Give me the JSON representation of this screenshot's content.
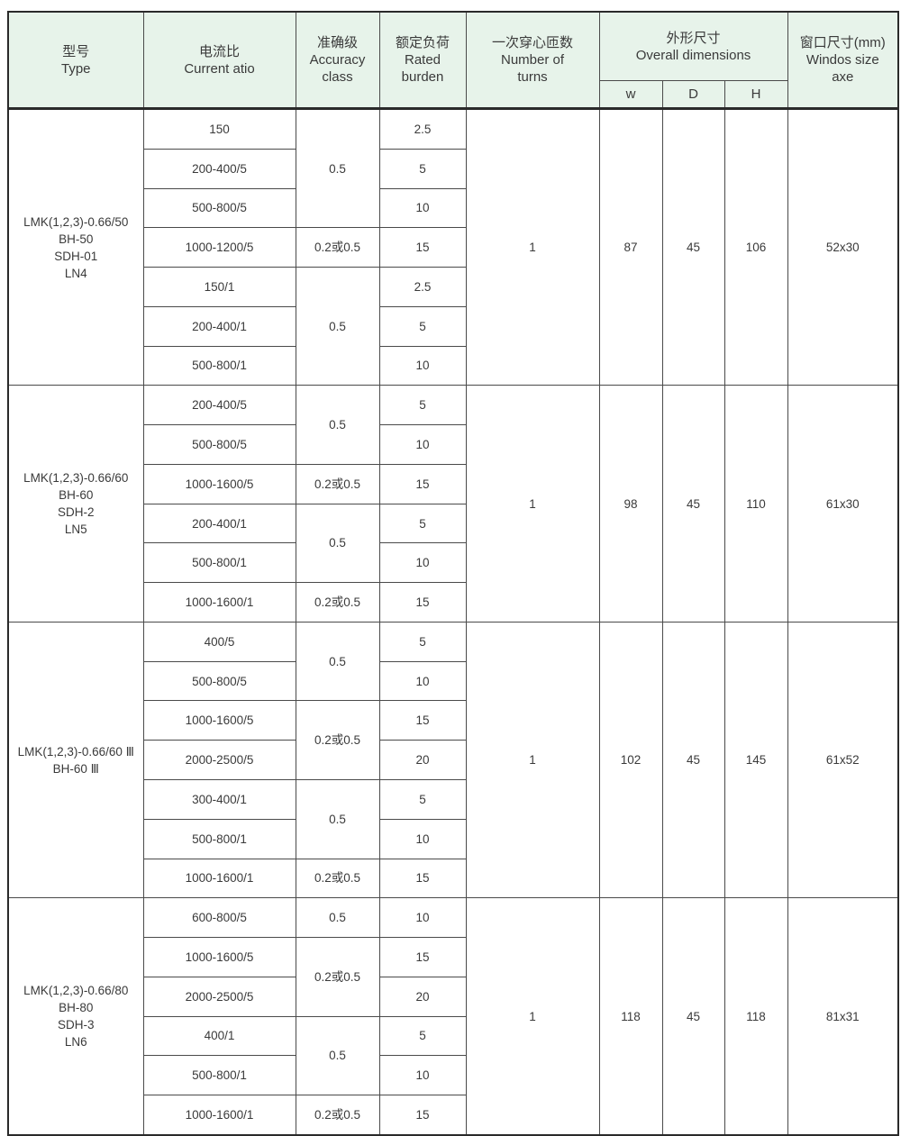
{
  "header": {
    "type": {
      "zh": "型号",
      "en": "Type"
    },
    "ratio": {
      "zh": "电流比",
      "en": "Current atio"
    },
    "accuracy": {
      "zh": "准确级",
      "en1": "Accuracy",
      "en2": "class"
    },
    "burden": {
      "zh": "额定负荷",
      "en1": "Rated",
      "en2": "burden"
    },
    "turns": {
      "zh": "一次穿心匝数",
      "en1": "Number of",
      "en2": "turns"
    },
    "dims": {
      "zh": "外形尺寸",
      "en": "Overall dimensions",
      "w": "w",
      "d": "D",
      "h": "H"
    },
    "window": {
      "zh": "窗口尺寸(mm)",
      "en1": "Windos size",
      "en2": "axe"
    }
  },
  "groups": [
    {
      "type": [
        "LMK(1,2,3)-0.66/50",
        "BH-50",
        "SDH-01",
        "LN4"
      ],
      "ratios": [
        "150",
        "200-400/5",
        "500-800/5",
        "1000-1200/5",
        "150/1",
        "200-400/1",
        "500-800/1"
      ],
      "accuracy": [
        {
          "value": "0.5",
          "span": 3
        },
        {
          "value": "0.2或0.5",
          "span": 1
        },
        {
          "value": "0.5",
          "span": 3
        }
      ],
      "burden": [
        "2.5",
        "5",
        "10",
        "15",
        "2.5",
        "5",
        "10"
      ],
      "turns": "1",
      "w": "87",
      "d": "45",
      "h": "106",
      "window": "52x30"
    },
    {
      "type": [
        "LMK(1,2,3)-0.66/60",
        "BH-60",
        "SDH-2",
        "LN5"
      ],
      "ratios": [
        "200-400/5",
        "500-800/5",
        "1000-1600/5",
        "200-400/1",
        "500-800/1",
        "1000-1600/1"
      ],
      "accuracy": [
        {
          "value": "0.5",
          "span": 2
        },
        {
          "value": "0.2或0.5",
          "span": 1
        },
        {
          "value": "0.5",
          "span": 2
        },
        {
          "value": "0.2或0.5",
          "span": 1
        }
      ],
      "burden": [
        "5",
        "10",
        "15",
        "5",
        "10",
        "15"
      ],
      "turns": "1",
      "w": "98",
      "d": "45",
      "h": "110",
      "window": "61x30"
    },
    {
      "type": [
        "LMK(1,2,3)-0.66/60 Ⅲ",
        "BH-60 Ⅲ"
      ],
      "ratios": [
        "400/5",
        "500-800/5",
        "1000-1600/5",
        "2000-2500/5",
        "300-400/1",
        "500-800/1",
        "1000-1600/1"
      ],
      "accuracy": [
        {
          "value": "0.5",
          "span": 2
        },
        {
          "value": "0.2或0.5",
          "span": 2
        },
        {
          "value": "0.5",
          "span": 2
        },
        {
          "value": "0.2或0.5",
          "span": 1
        }
      ],
      "burden": [
        "5",
        "10",
        "15",
        "20",
        "5",
        "10",
        "15"
      ],
      "turns": "1",
      "w": "102",
      "d": "45",
      "h": "145",
      "window": "61x52"
    },
    {
      "type": [
        "LMK(1,2,3)-0.66/80",
        "BH-80",
        "SDH-3",
        "LN6"
      ],
      "ratios": [
        "600-800/5",
        "1000-1600/5",
        "2000-2500/5",
        "400/1",
        "500-800/1",
        "1000-1600/1"
      ],
      "accuracy": [
        {
          "value": "0.5",
          "span": 1
        },
        {
          "value": "0.2或0.5",
          "span": 2
        },
        {
          "value": "0.5",
          "span": 2
        },
        {
          "value": "0.2或0.5",
          "span": 1
        }
      ],
      "burden": [
        "10",
        "15",
        "20",
        "5",
        "10",
        "15"
      ],
      "turns": "1",
      "w": "118",
      "d": "45",
      "h": "118",
      "window": "81x31"
    }
  ]
}
